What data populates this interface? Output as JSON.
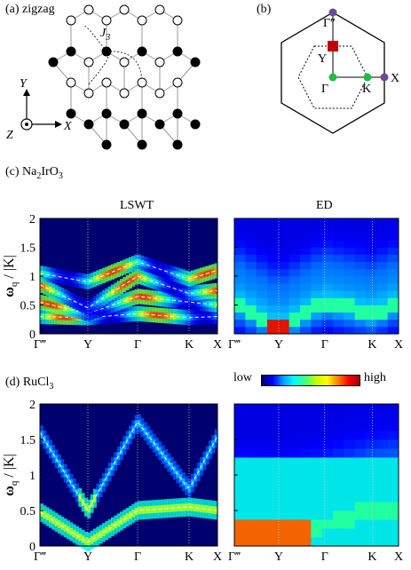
{
  "panel_a": {
    "label": "(a) zigzag",
    "j3": "J",
    "j3_sub": "3",
    "axis_y": "Y",
    "axis_x": "X",
    "axis_z": "Z"
  },
  "panel_b": {
    "label": "(b)",
    "points": {
      "gamma_pp": "Γ″",
      "y": "Y",
      "gamma": "Γ",
      "k": "K",
      "x": "X"
    }
  },
  "panel_c": {
    "label_prefix": "(c) Na",
    "label_sub1": "2",
    "label_mid": "IrO",
    "label_sub2": "3",
    "left_title": "LSWT",
    "right_title": "ED"
  },
  "panel_d": {
    "label_prefix": "(d) RuCl",
    "label_sub": "3"
  },
  "colorbar": {
    "low": "low",
    "high": "high"
  },
  "axes": {
    "ylabel_omega": "ω",
    "ylabel_sub": "q",
    "ylabel_rest": " / |K|",
    "yticks": [
      "0",
      "0.5",
      "1",
      "1.5",
      "2"
    ],
    "xticks": [
      "Γ‴",
      "Y",
      "Γ",
      "K",
      "X"
    ]
  },
  "chart_data": [
    {
      "type": "heatmap",
      "title": "LSWT",
      "panel": "Na2IrO3",
      "ylim": [
        0,
        2
      ],
      "xcategories": [
        "Γ‴",
        "Y",
        "Γ",
        "K",
        "X"
      ],
      "series": [
        {
          "values": [
            0.3,
            0.28,
            0.35,
            0.28,
            0.3
          ]
        },
        {
          "values": [
            0.55,
            0.35,
            0.65,
            0.55,
            0.5
          ]
        },
        {
          "values": [
            0.85,
            0.45,
            1.0,
            0.7,
            0.75
          ]
        },
        {
          "values": [
            1.05,
            0.9,
            1.25,
            0.95,
            1.1
          ]
        }
      ]
    },
    {
      "type": "heatmap",
      "title": "ED",
      "panel": "Na2IrO3",
      "ylim": [
        0,
        2
      ],
      "xcategories": [
        "Γ‴",
        "Y",
        "Γ",
        "K",
        "X"
      ],
      "series": [
        {
          "values": [
            0.55,
            0.12,
            0.55,
            0.35,
            0.55
          ]
        }
      ]
    },
    {
      "type": "heatmap",
      "panel": "RuCl3 LSWT",
      "ylim": [
        0,
        2
      ],
      "xcategories": [
        "Γ‴",
        "Y",
        "Γ",
        "K",
        "X"
      ],
      "series": [
        {
          "values": [
            0.48,
            0.05,
            0.5,
            0.55,
            0.5
          ]
        },
        {
          "values": [
            1.6,
            0.5,
            1.75,
            0.8,
            1.55
          ]
        }
      ]
    },
    {
      "type": "heatmap",
      "panel": "RuCl3 ED",
      "ylim": [
        0,
        2
      ],
      "xcategories": [
        "Γ‴",
        "Y",
        "Γ",
        "K",
        "X"
      ],
      "series": [
        {
          "values": [
            0.2,
            0.15,
            0.3,
            0.5,
            0.55
          ]
        }
      ]
    }
  ]
}
